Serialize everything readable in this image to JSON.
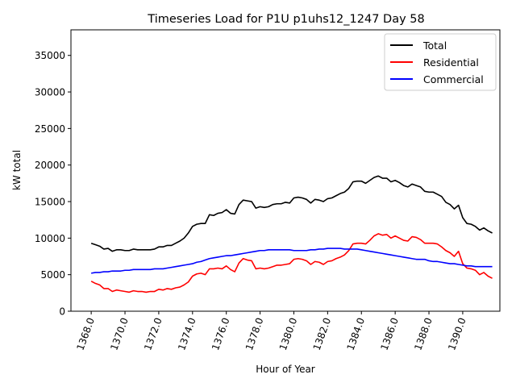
{
  "chart_data": {
    "type": "line",
    "title": "Timeseries Load for P1U p1uhs12_1247  Day 58",
    "xlabel": "Hour of Year",
    "ylabel": "kW total",
    "xlim": [
      1366.8,
      1392.2
    ],
    "ylim": [
      0,
      38500
    ],
    "xticks": [
      1368,
      1370,
      1372,
      1374,
      1376,
      1378,
      1380,
      1382,
      1384,
      1386,
      1388,
      1390
    ],
    "xtick_labels": [
      "1368.0",
      "1370.0",
      "1372.0",
      "1374.0",
      "1376.0",
      "1378.0",
      "1380.0",
      "1382.0",
      "1384.0",
      "1386.0",
      "1388.0",
      "1390.0"
    ],
    "yticks": [
      0,
      5000,
      10000,
      15000,
      20000,
      25000,
      30000,
      35000
    ],
    "ytick_labels": [
      "0",
      "5000",
      "10000",
      "15000",
      "20000",
      "25000",
      "30000",
      "35000"
    ],
    "legend_position": "top-right",
    "x_start": 1368.0,
    "x_step": 0.25,
    "series": [
      {
        "name": "Total",
        "color": "#000000",
        "values": [
          9300,
          9100,
          8900,
          8500,
          8600,
          8200,
          8400,
          8400,
          8300,
          8300,
          8500,
          8400,
          8400,
          8400,
          8400,
          8500,
          8800,
          8800,
          9000,
          9000,
          9300,
          9600,
          10000,
          10700,
          11600,
          11900,
          12000,
          12000,
          13200,
          13100,
          13400,
          13500,
          13900,
          13400,
          13300,
          14600,
          15200,
          15100,
          15000,
          14100,
          14300,
          14200,
          14300,
          14600,
          14700,
          14700,
          14900,
          14800,
          15500,
          15600,
          15500,
          15300,
          14800,
          15300,
          15200,
          15000,
          15400,
          15500,
          15800,
          16100,
          16300,
          16800,
          17700,
          17800,
          17800,
          17500,
          17900,
          18300,
          18500,
          18200,
          18200,
          17700,
          17900,
          17600,
          17200,
          17000,
          17400,
          17200,
          17000,
          16400,
          16300,
          16300,
          16000,
          15700,
          14900,
          14600,
          14000,
          14500,
          12800,
          12000,
          11900,
          11600,
          11100,
          11400,
          11000,
          10700
        ]
      },
      {
        "name": "Residential",
        "color": "#ff0000",
        "values": [
          4100,
          3800,
          3600,
          3100,
          3100,
          2700,
          2900,
          2800,
          2700,
          2600,
          2800,
          2700,
          2700,
          2600,
          2700,
          2700,
          3000,
          2900,
          3100,
          3000,
          3200,
          3300,
          3600,
          4000,
          4800,
          5100,
          5200,
          5000,
          5800,
          5800,
          5900,
          5800,
          6200,
          5700,
          5400,
          6600,
          7200,
          7000,
          6900,
          5800,
          5900,
          5800,
          5900,
          6100,
          6300,
          6300,
          6400,
          6500,
          7100,
          7200,
          7100,
          6900,
          6400,
          6800,
          6700,
          6400,
          6800,
          6900,
          7200,
          7400,
          7700,
          8300,
          9200,
          9300,
          9300,
          9200,
          9700,
          10300,
          10600,
          10400,
          10500,
          10000,
          10300,
          10000,
          9700,
          9600,
          10200,
          10100,
          9800,
          9300,
          9300,
          9300,
          9200,
          8800,
          8300,
          8000,
          7500,
          8200,
          6500,
          5900,
          5800,
          5600,
          5000,
          5300,
          4800,
          4500
        ]
      },
      {
        "name": "Commercial",
        "color": "#0000ff",
        "values": [
          5200,
          5300,
          5300,
          5400,
          5400,
          5500,
          5500,
          5500,
          5600,
          5600,
          5700,
          5700,
          5700,
          5700,
          5700,
          5800,
          5800,
          5800,
          5900,
          6000,
          6100,
          6200,
          6300,
          6400,
          6500,
          6700,
          6800,
          7000,
          7200,
          7300,
          7400,
          7500,
          7600,
          7600,
          7700,
          7800,
          7900,
          8000,
          8100,
          8200,
          8300,
          8300,
          8400,
          8400,
          8400,
          8400,
          8400,
          8400,
          8300,
          8300,
          8300,
          8300,
          8400,
          8400,
          8500,
          8500,
          8600,
          8600,
          8600,
          8600,
          8500,
          8500,
          8500,
          8500,
          8400,
          8300,
          8200,
          8100,
          8000,
          7900,
          7800,
          7700,
          7600,
          7500,
          7400,
          7300,
          7200,
          7100,
          7100,
          7100,
          6900,
          6800,
          6800,
          6700,
          6600,
          6500,
          6500,
          6400,
          6300,
          6200,
          6200,
          6100,
          6100,
          6100,
          6100,
          6100
        ]
      }
    ]
  }
}
